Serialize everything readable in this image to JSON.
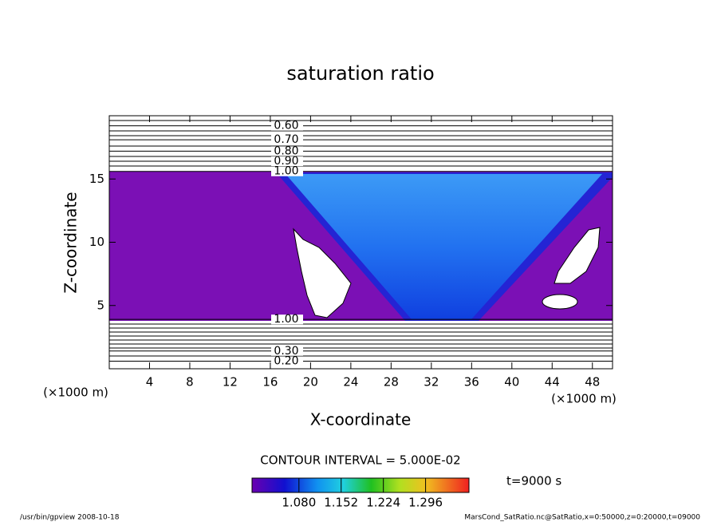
{
  "chart_data": {
    "type": "contour",
    "title": "saturation ratio",
    "x_label": "X-coordinate",
    "y_label": "Z-coordinate",
    "x_unit": "(×1000 m)",
    "y_unit": "(×1000 m)",
    "xlim": [
      0,
      50
    ],
    "ylim": [
      0,
      20
    ],
    "xticks": [
      4,
      8,
      12,
      16,
      20,
      24,
      28,
      32,
      36,
      40,
      44,
      48
    ],
    "yticks": [
      5,
      10,
      15
    ],
    "contours": [
      {
        "level": {
          "value": 0.6,
          "label": "0.60"
        },
        "z": 19.2
      },
      {
        "level": {
          "value": 0.7,
          "label": "0.70"
        },
        "z": 18.1
      },
      {
        "level": {
          "value": 0.8,
          "label": "0.80"
        },
        "z": 17.2
      },
      {
        "level": {
          "value": 0.9,
          "label": "0.90"
        },
        "z": 16.4
      },
      {
        "level": {
          "value": 1.0,
          "label": "1.00"
        },
        "z": 15.6
      },
      {
        "level": {
          "value": 1.0,
          "label": "1.00"
        },
        "z": 3.9
      },
      {
        "level": {
          "value": 0.3,
          "label": "0.30"
        },
        "z": 1.4
      },
      {
        "level": {
          "value": 0.2,
          "label": "0.20"
        },
        "z": 0.6
      }
    ],
    "contour_interval_text": "CONTOUR INTERVAL = 5.000E-02",
    "colorbar": {
      "lim": [
        1.0,
        1.37
      ],
      "ticks": [
        {
          "value": 1.08,
          "label": "1.080"
        },
        {
          "value": 1.152,
          "label": "1.152"
        },
        {
          "value": 1.224,
          "label": "1.224"
        },
        {
          "value": 1.296,
          "label": "1.296"
        }
      ]
    },
    "time_label": "t=9000 s",
    "footer_left": "/usr/bin/gpview   2008-10-18",
    "footer_right": "MarsCond_SatRatio.nc@SatRatio,x=0:50000,z=0:20000,t=09000"
  }
}
